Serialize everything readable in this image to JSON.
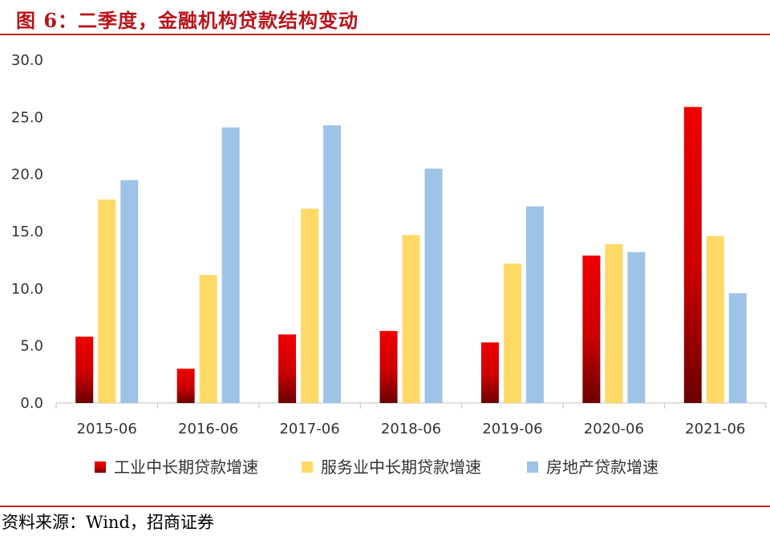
{
  "title": "图 6：二季度，金融机构贷款结构变动",
  "source": "资料来源：Wind，招商证券",
  "chart_data": {
    "type": "bar",
    "categories": [
      "2015-06",
      "2016-06",
      "2017-06",
      "2018-06",
      "2019-06",
      "2020-06",
      "2021-06"
    ],
    "series": [
      {
        "name": "工业中长期贷款增速",
        "color": "#c00000",
        "values": [
          5.8,
          3.0,
          6.0,
          6.3,
          5.3,
          12.9,
          25.9
        ]
      },
      {
        "name": "服务业中长期贷款增速",
        "color": "#ffd966",
        "values": [
          17.8,
          11.2,
          17.0,
          14.7,
          12.2,
          13.9,
          14.6
        ]
      },
      {
        "name": "房地产贷款增速",
        "color": "#9dc3e6",
        "values": [
          19.5,
          24.1,
          24.3,
          20.5,
          17.2,
          13.2,
          9.6
        ]
      }
    ],
    "ylim": [
      0,
      30
    ],
    "yticks": [
      "0.0",
      "5.0",
      "10.0",
      "15.0",
      "20.0",
      "25.0",
      "30.0"
    ],
    "grid": false,
    "legend": "bottom"
  }
}
